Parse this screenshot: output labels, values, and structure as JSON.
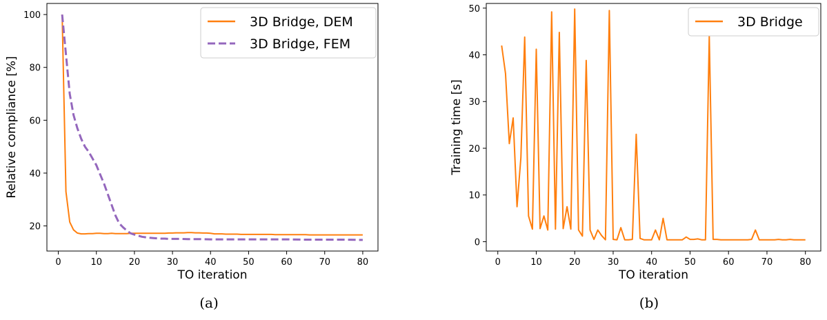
{
  "colors": {
    "dem": "#ff7f0e",
    "fem": "#9467bd",
    "bridge": "#ff7f0e"
  },
  "chart_data": [
    {
      "type": "line",
      "panel_label": "(a)",
      "xlabel": "TO iteration",
      "ylabel": "Relative compliance [%]",
      "xlim": [
        -3,
        84
      ],
      "ylim": [
        10.5,
        104.2
      ],
      "xticks": [
        0,
        10,
        20,
        30,
        40,
        50,
        60,
        70,
        80
      ],
      "yticks": [
        20,
        40,
        60,
        80,
        100
      ],
      "legend_position": "top-right",
      "series": [
        {
          "name": "3D Bridge, DEM",
          "style": "solid",
          "color": "#ff7f0e",
          "x": [
            1,
            2,
            3,
            4,
            5,
            6,
            7,
            8,
            9,
            10,
            11,
            12,
            13,
            14,
            15,
            16,
            17,
            18,
            19,
            20,
            21,
            22,
            23,
            24,
            25,
            26,
            27,
            28,
            29,
            30,
            31,
            32,
            33,
            34,
            35,
            36,
            37,
            38,
            39,
            40,
            41,
            42,
            43,
            44,
            45,
            46,
            47,
            48,
            49,
            50,
            51,
            52,
            53,
            54,
            55,
            56,
            57,
            58,
            59,
            60,
            61,
            62,
            63,
            64,
            65,
            66,
            67,
            68,
            69,
            70,
            71,
            72,
            73,
            74,
            75,
            76,
            77,
            78,
            79,
            80
          ],
          "y": [
            100,
            33,
            21.5,
            18.5,
            17.3,
            17.0,
            17.0,
            17.1,
            17.1,
            17.2,
            17.2,
            17.1,
            17.1,
            17.2,
            17.1,
            17.1,
            17.1,
            17.1,
            17.2,
            17.2,
            17.2,
            17.2,
            17.2,
            17.2,
            17.2,
            17.2,
            17.2,
            17.2,
            17.3,
            17.3,
            17.4,
            17.4,
            17.4,
            17.5,
            17.5,
            17.4,
            17.4,
            17.3,
            17.3,
            17.2,
            17.0,
            17.0,
            17.0,
            16.9,
            16.9,
            16.9,
            16.9,
            16.8,
            16.8,
            16.8,
            16.8,
            16.8,
            16.8,
            16.8,
            16.8,
            16.8,
            16.7,
            16.7,
            16.7,
            16.7,
            16.7,
            16.7,
            16.7,
            16.7,
            16.7,
            16.6,
            16.6,
            16.6,
            16.6,
            16.6,
            16.6,
            16.6,
            16.6,
            16.6,
            16.6,
            16.6,
            16.6,
            16.6,
            16.6,
            16.6
          ]
        },
        {
          "name": "3D Bridge, FEM",
          "style": "dashed",
          "color": "#9467bd",
          "x": [
            1,
            2,
            3,
            4,
            5,
            6,
            7,
            8,
            9,
            10,
            11,
            12,
            13,
            14,
            15,
            16,
            17,
            18,
            19,
            20,
            21,
            22,
            23,
            24,
            25,
            26,
            27,
            28,
            29,
            30,
            32,
            34,
            36,
            38,
            40,
            45,
            50,
            55,
            60,
            65,
            70,
            75,
            80
          ],
          "y": [
            100,
            85,
            70,
            62,
            57,
            53,
            50,
            48,
            45.5,
            43,
            39.5,
            36,
            32,
            28,
            24,
            21,
            19.5,
            18.2,
            17.2,
            16.7,
            16.3,
            15.9,
            15.7,
            15.5,
            15.4,
            15.3,
            15.2,
            15.2,
            15.1,
            15.1,
            15.1,
            15.0,
            15.0,
            15.0,
            14.9,
            14.9,
            14.9,
            14.9,
            14.9,
            14.8,
            14.8,
            14.8,
            14.7
          ]
        }
      ]
    },
    {
      "type": "line",
      "panel_label": "(b)",
      "xlabel": "TO iteration",
      "ylabel": "Training time [s]",
      "xlim": [
        -3,
        84
      ],
      "ylim": [
        -2.0,
        51.0
      ],
      "xticks": [
        0,
        10,
        20,
        30,
        40,
        50,
        60,
        70,
        80
      ],
      "yticks": [
        0,
        10,
        20,
        30,
        40,
        50
      ],
      "legend_position": "top-right",
      "series": [
        {
          "name": "3D Bridge",
          "style": "solid",
          "color": "#ff7f0e",
          "x": [
            1,
            2,
            3,
            4,
            5,
            6,
            7,
            8,
            9,
            10,
            11,
            12,
            13,
            14,
            15,
            16,
            17,
            18,
            19,
            20,
            21,
            22,
            23,
            24,
            25,
            26,
            27,
            28,
            29,
            30,
            31,
            32,
            33,
            34,
            35,
            36,
            37,
            38,
            39,
            40,
            41,
            42,
            43,
            44,
            45,
            46,
            47,
            48,
            49,
            50,
            51,
            52,
            53,
            54,
            55,
            56,
            57,
            58,
            59,
            60,
            61,
            62,
            63,
            64,
            65,
            66,
            67,
            68,
            69,
            70,
            71,
            72,
            73,
            74,
            75,
            76,
            77,
            78,
            79,
            80
          ],
          "y": [
            42,
            36,
            21,
            26.5,
            7.5,
            18,
            43.8,
            5.5,
            2.7,
            41.2,
            2.8,
            5.5,
            2.5,
            49.2,
            2.7,
            44.8,
            2.8,
            7.5,
            2.7,
            49.8,
            2.5,
            1.2,
            38.8,
            2.5,
            0.5,
            2.5,
            1.3,
            0.4,
            49.5,
            0.5,
            0.4,
            3.0,
            0.4,
            0.4,
            0.5,
            23.0,
            0.7,
            0.4,
            0.4,
            0.4,
            2.5,
            0.4,
            5.0,
            0.4,
            0.4,
            0.4,
            0.4,
            0.4,
            1.0,
            0.5,
            0.5,
            0.6,
            0.4,
            0.4,
            44.0,
            0.5,
            0.5,
            0.4,
            0.4,
            0.4,
            0.4,
            0.4,
            0.4,
            0.4,
            0.4,
            0.5,
            2.5,
            0.4,
            0.4,
            0.4,
            0.4,
            0.4,
            0.5,
            0.4,
            0.4,
            0.5,
            0.4,
            0.4,
            0.4,
            0.4
          ]
        }
      ]
    }
  ]
}
